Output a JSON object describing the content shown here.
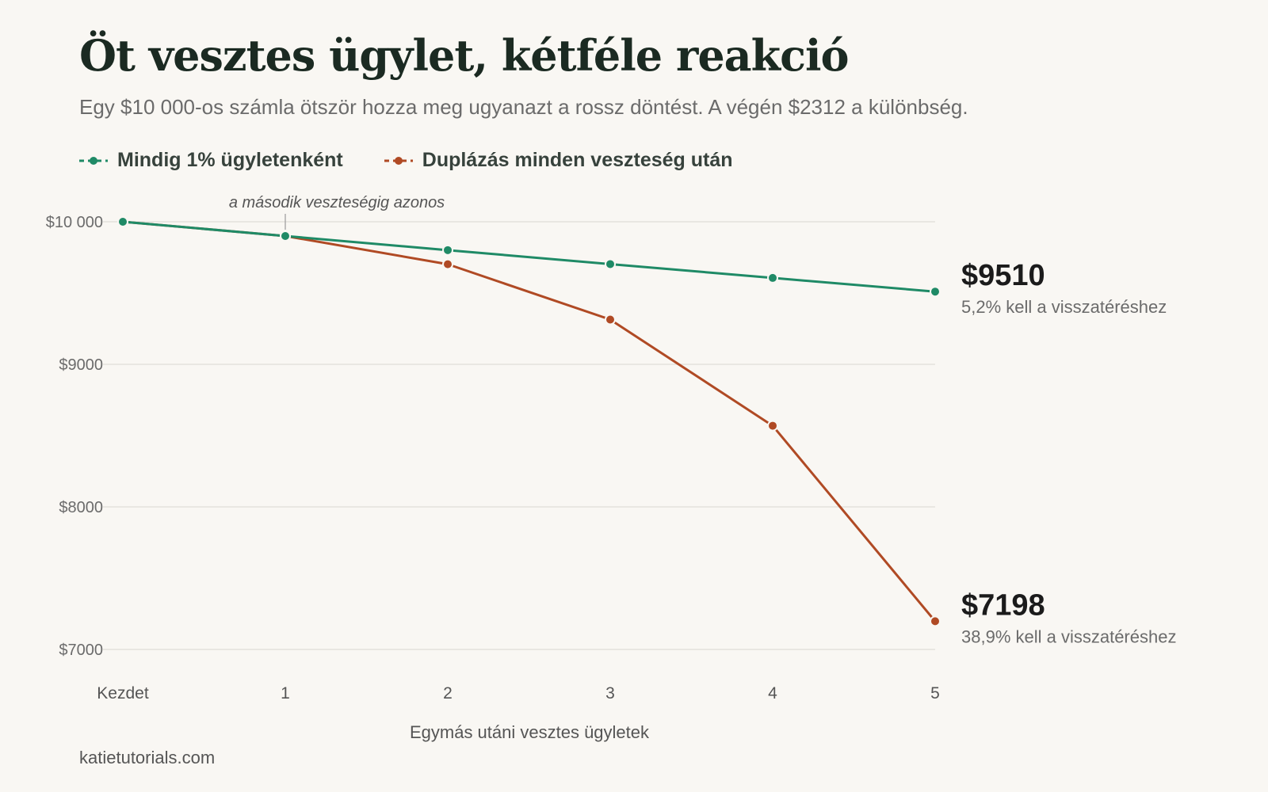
{
  "title": "Öt vesztes ügylet, kétféle reakció",
  "subtitle": "Egy $10 000-os számla ötször hozza meg ugyanazt a rossz döntést. A végén $2312 a különbség.",
  "source": "katietutorials.com",
  "colors": {
    "green": "#1f8a66",
    "orange": "#b04a24",
    "grid": "#e4e2dd"
  },
  "chart_data": {
    "type": "line",
    "title": "Öt vesztes ügylet, kétféle reakció",
    "xlabel": "Egymás utáni vesztes ügyletek",
    "ylabel": "",
    "categories": [
      "Kezdet",
      "1",
      "2",
      "3",
      "4",
      "5"
    ],
    "yticks": [
      10000,
      9000,
      8000,
      7000
    ],
    "ytick_labels": [
      "$10 000",
      "$9000",
      "$8000",
      "$7000"
    ],
    "ylim": [
      7000,
      10000
    ],
    "grid": true,
    "legend_position": "top-left",
    "series": [
      {
        "name": "Mindig 1% ügyletenként",
        "color": "#1f8a66",
        "values": [
          10000,
          9900,
          9801,
          9703,
          9606,
          9510
        ],
        "end_label": "$9510",
        "end_note": "5,2% kell a visszatéréshez"
      },
      {
        "name": "Duplázás minden veszteség után",
        "color": "#b04a24",
        "values": [
          10000,
          9900,
          9702,
          9314,
          8569,
          7198
        ],
        "end_label": "$7198",
        "end_note": "38,9% kell a visszatéréshez"
      }
    ],
    "annotations": [
      {
        "x_index": 1,
        "text": "a második veszteségig azonos"
      }
    ]
  }
}
